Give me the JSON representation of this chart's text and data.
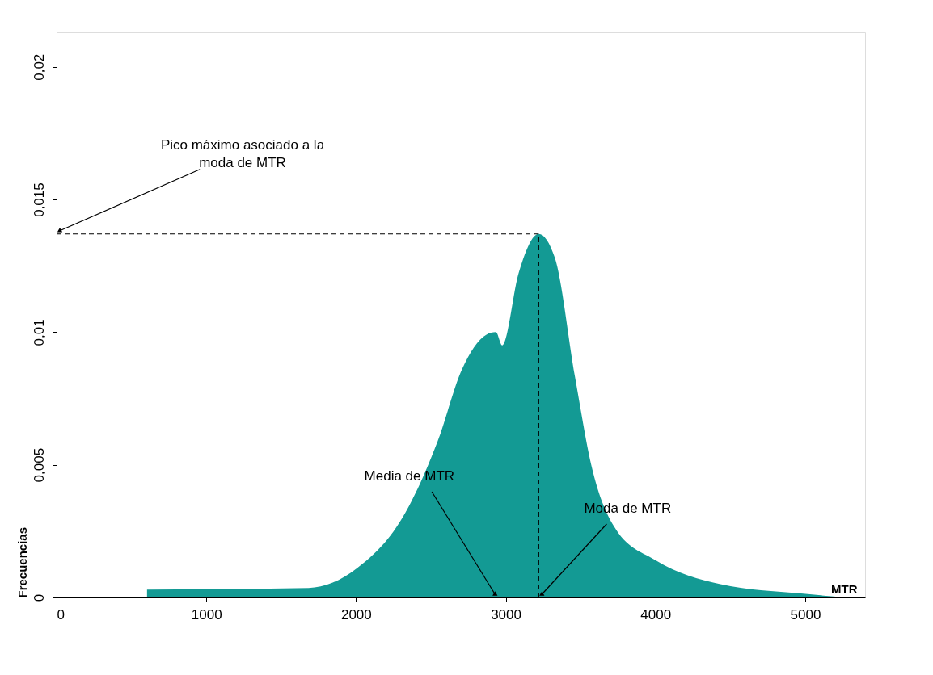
{
  "chart_data": {
    "type": "area",
    "xlabel": "MTR",
    "ylabel": "Frecuencias",
    "xlim": [
      0,
      5400
    ],
    "ylim": [
      0,
      0.0213
    ],
    "xticks": [
      0,
      1000,
      2000,
      3000,
      4000,
      5000
    ],
    "yticks": [
      {
        "value": 0,
        "label": "0"
      },
      {
        "value": 0.005,
        "label": "0,005"
      },
      {
        "value": 0.01,
        "label": "0,01"
      },
      {
        "value": 0.015,
        "label": "0,015"
      },
      {
        "value": 0.02,
        "label": "0,02"
      }
    ],
    "grid": false,
    "x": [
      604,
      1683,
      2006,
      2330,
      2546,
      2708,
      2869,
      2934,
      2977,
      3085,
      3220,
      3328,
      3463,
      3571,
      3732,
      4002,
      4434,
      4973,
      5270
    ],
    "series": [
      {
        "color": "#139a94",
        "values": [
          0.0003,
          0.00036,
          0.0011,
          0.0032,
          0.0059,
          0.0086,
          0.0099,
          0.01,
          0.0095,
          0.0122,
          0.0137,
          0.0128,
          0.0083,
          0.005,
          0.0026,
          0.0014,
          0.0005,
          0.00015,
          0
        ]
      }
    ],
    "ref_lines": [
      {
        "axis": "y",
        "value": 0.0137,
        "line_style": "dashed",
        "color": "#000000"
      },
      {
        "axis": "x",
        "value": 3220,
        "line_style": "dashed",
        "color": "#000000"
      }
    ],
    "annotations": [
      {
        "text": "Pico máximo asociado a la moda de MTR",
        "x": 0,
        "y": 0.0137
      },
      {
        "text": "Media de MTR",
        "x": 2950,
        "y": 0
      },
      {
        "text": "Moda de MTR",
        "x": 3220,
        "y": 0
      }
    ]
  }
}
